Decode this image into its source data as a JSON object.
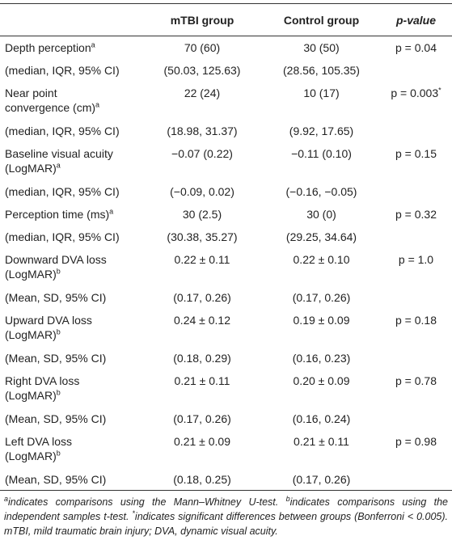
{
  "table": {
    "header": [
      "",
      "mTBI group",
      "Control group",
      "p-value"
    ],
    "rows": [
      {
        "label": {
          "lines": [
            "Depth perception"
          ],
          "sup": "a"
        },
        "mtbi": "70 (60)",
        "control": "30 (50)",
        "p": {
          "text": "p = 0.04"
        }
      },
      {
        "label": {
          "lines": [
            "(median, IQR, 95% CI)"
          ]
        },
        "mtbi": "(50.03, 125.63)",
        "control": "(28.56, 105.35)"
      },
      {
        "label": {
          "lines": [
            "Near point",
            "convergence (cm)"
          ],
          "sup": "a"
        },
        "mtbi": "22 (24)",
        "control": "10 (17)",
        "p": {
          "text": "p = 0.003",
          "sup": "*"
        }
      },
      {
        "label": {
          "lines": [
            "(median, IQR, 95% CI)"
          ]
        },
        "mtbi": "(18.98, 31.37)",
        "control": "(9.92, 17.65)"
      },
      {
        "label": {
          "lines": [
            "Baseline visual acuity",
            "(LogMAR)"
          ],
          "sup": "a"
        },
        "mtbi": "−0.07 (0.22)",
        "control": "−0.11 (0.10)",
        "p": {
          "text": "p =  0.15"
        }
      },
      {
        "label": {
          "lines": [
            "(median, IQR, 95% CI)"
          ]
        },
        "mtbi": "(−0.09, 0.02)",
        "control": "(−0.16, −0.05)"
      },
      {
        "label": {
          "lines": [
            "Perception time (ms)"
          ],
          "sup": "a"
        },
        "mtbi": "30 (2.5)",
        "control": "30 (0)",
        "p": {
          "text": "p = 0.32"
        }
      },
      {
        "label": {
          "lines": [
            "(median, IQR, 95% CI)"
          ]
        },
        "mtbi": "(30.38, 35.27)",
        "control": "(29.25, 34.64)"
      },
      {
        "label": {
          "lines": [
            "Downward DVA loss",
            "(LogMAR)"
          ],
          "sup": "b"
        },
        "mtbi": "0.22 ± 0.11",
        "control": "0.22 ± 0.10",
        "p": {
          "text": "p = 1.0"
        }
      },
      {
        "label": {
          "lines": [
            "(Mean, SD, 95% CI)"
          ]
        },
        "mtbi": "(0.17, 0.26)",
        "control": "(0.17, 0.26)"
      },
      {
        "label": {
          "lines": [
            "Upward DVA loss",
            "(LogMAR)"
          ],
          "sup": "b"
        },
        "mtbi": "0.24 ± 0.12",
        "control": "0.19 ± 0.09",
        "p": {
          "text": "p = 0.18"
        }
      },
      {
        "label": {
          "lines": [
            "(Mean, SD, 95% CI)"
          ]
        },
        "mtbi": "(0.18, 0.29)",
        "control": "(0.16, 0.23)"
      },
      {
        "label": {
          "lines": [
            "Right DVA loss",
            "(LogMAR)"
          ],
          "sup": "b"
        },
        "mtbi": "0.21 ± 0.11",
        "control": "0.20 ± 0.09",
        "p": {
          "text": "p = 0.78"
        }
      },
      {
        "label": {
          "lines": [
            "(Mean, SD, 95% CI)"
          ]
        },
        "mtbi": "(0.17, 0.26)",
        "control": "(0.16, 0.24)"
      },
      {
        "label": {
          "lines": [
            "Left DVA loss",
            "(LogMAR)"
          ],
          "sup": "b"
        },
        "mtbi": "0.21 ± 0.09",
        "control": "0.21 ± 0.11",
        "p": {
          "text": "p = 0.98"
        }
      },
      {
        "label": {
          "lines": [
            "(Mean, SD, 95% CI)"
          ]
        },
        "mtbi": "(0.18, 0.25)",
        "control": "(0.17, 0.26)"
      }
    ]
  },
  "footnote": [
    {
      "sup": "a",
      "text": "indicates comparisons using the Mann–Whitney U-test. "
    },
    {
      "sup": "b",
      "text": "indicates comparisons using the independent samples t-test. "
    },
    {
      "sup": "*",
      "text": "indicates significant differences between groups (Bonferroni < 0.005). mTBI, mild traumatic brain injury; DVA, dynamic visual acuity."
    }
  ]
}
